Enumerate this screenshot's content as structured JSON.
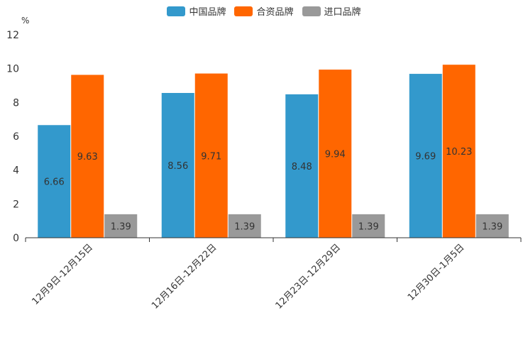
{
  "chart_data": {
    "type": "bar",
    "unit": "%",
    "categories": [
      "12月9日-12月15日",
      "12月16日-12月22日",
      "12月23日-12月29日",
      "12月30日-1月5日"
    ],
    "series": [
      {
        "name": "中国品牌",
        "color": "#3399CC",
        "values": [
          6.66,
          8.56,
          8.48,
          9.69
        ]
      },
      {
        "name": "合资品牌",
        "color": "#FF6600",
        "values": [
          9.63,
          9.71,
          9.94,
          10.23
        ]
      },
      {
        "name": "进口品牌",
        "color": "#999999",
        "values": [
          1.39,
          1.39,
          1.39,
          1.39
        ]
      }
    ],
    "ylim": [
      0,
      12
    ],
    "yticks": [
      0,
      2,
      4,
      6,
      8,
      10,
      12
    ],
    "legend_position": "top-center"
  }
}
